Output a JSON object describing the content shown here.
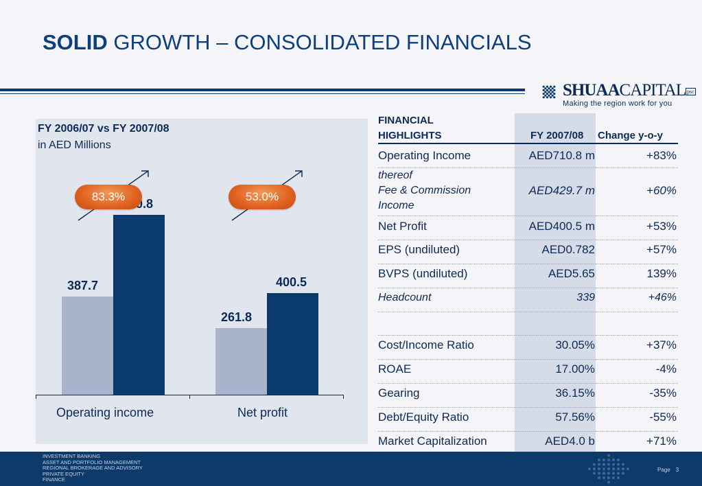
{
  "title": {
    "bold": "SOLID",
    "rest": "GROWTH – CONSOLIDATED FINANCIALS"
  },
  "logo": {
    "name_bold": "SHUAA",
    "name_rest": "CAPITAL",
    "suffix": "psc",
    "tagline": "Making the region work for you"
  },
  "chart_panel": {
    "heading": "FY 2006/07 vs FY 2007/08",
    "subheading": "in AED Millions"
  },
  "chart_data": {
    "type": "bar",
    "title": "FY 2006/07 vs FY 2007/08",
    "subtitle": "in AED Millions",
    "categories": [
      "Operating income",
      "Net profit"
    ],
    "series": [
      {
        "values": [
          387.7,
          261.8
        ],
        "color": "#a9b4cc"
      },
      {
        "values": [
          710.8,
          400.5
        ],
        "color": "#0b3b6e"
      }
    ],
    "growth_labels": [
      "83.3%",
      "53.0%"
    ],
    "ylim": [
      0,
      800
    ],
    "grid": false
  },
  "table": {
    "headers": {
      "highlights_line1": "FINANCIAL",
      "highlights_line2": "HIGHLIGHTS",
      "fy": "FY 2007/08",
      "change": "Change y-o-y"
    },
    "rows": [
      {
        "label": "Operating Income",
        "value": "AED710.8 m",
        "change": "+83%"
      },
      {
        "label_line1": "thereof",
        "label_line2": "Fee & Commission",
        "label_line3": "Income",
        "value": "AED429.7 m",
        "change": "+60%"
      },
      {
        "label": "Net Profit",
        "value": "AED400.5 m",
        "change": "+53%"
      },
      {
        "label": "EPS (undiluted)",
        "value": "AED0.782",
        "change": "+57%"
      },
      {
        "label": "BVPS (undiluted)",
        "value": "AED5.65",
        "change": "139%"
      },
      {
        "label": "Headcount",
        "value": "339",
        "change": "+46%"
      },
      {
        "label": "Cost/Income Ratio",
        "value": "30.05%",
        "change": "+37%"
      },
      {
        "label": "ROAE",
        "value": "17.00%",
        "change": "-4%"
      },
      {
        "label": "Gearing",
        "value": "36.15%",
        "change": "-35%"
      },
      {
        "label": "Debt/Equity Ratio",
        "value": "57.56%",
        "change": "-55%"
      },
      {
        "label": "Market Capitalization",
        "value": "AED4.0 b",
        "change": "+71%"
      }
    ]
  },
  "footer": {
    "items": [
      "INVESTMENT BANKING",
      "ASSET AND PORTFOLIO MANAGEMENT",
      "REGIONAL BROKERAGE AND ADVISORY",
      "PRIVATE EQUITY",
      "FINANCE"
    ],
    "page_label": "Page",
    "page_number": "3"
  }
}
